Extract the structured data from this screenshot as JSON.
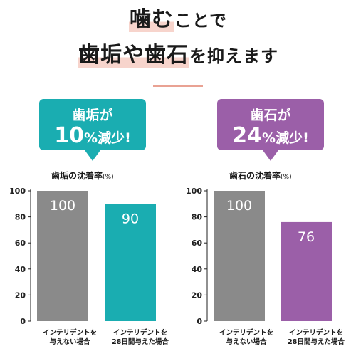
{
  "headline": {
    "line1_highlight": "噛む",
    "line1_rest": "ことで",
    "line2_highlight": "歯垢や歯石",
    "line2_rest": "を抑えます"
  },
  "colors": {
    "teal": "#1aadb1",
    "purple": "#9b5fa8",
    "gray": "#8a8a8a",
    "highlight": "#f7d4cc",
    "rule": "#e9a293"
  },
  "left": {
    "bubble_line1": "歯垢が",
    "bubble_num": "10",
    "bubble_pct": "%",
    "bubble_rest": "減少!",
    "bubble_color": "#1aadb1"
  },
  "right": {
    "bubble_line1": "歯石が",
    "bubble_num": "24",
    "bubble_pct": "%",
    "bubble_rest": "減少!",
    "bubble_color": "#9b5fa8"
  },
  "chart_data": [
    {
      "type": "bar",
      "title": "歯垢の沈着率",
      "unit": "(%)",
      "categories": [
        "インテリデントを\n与えない場合",
        "インテリデントを\n28日間与えた場合"
      ],
      "values": [
        100,
        90
      ],
      "colors": [
        "#8a8a8a",
        "#1aadb1"
      ],
      "ylim": [
        0,
        100
      ],
      "yticks": [
        0,
        20,
        40,
        60,
        80,
        100
      ],
      "data_labels": [
        "100",
        "90"
      ],
      "grid": false
    },
    {
      "type": "bar",
      "title": "歯石の沈着率",
      "unit": "(%)",
      "categories": [
        "インテリデントを\n与えない場合",
        "インテリデントを\n28日間与えた場合"
      ],
      "values": [
        100,
        76
      ],
      "colors": [
        "#8a8a8a",
        "#9b5fa8"
      ],
      "ylim": [
        0,
        100
      ],
      "yticks": [
        0,
        20,
        40,
        60,
        80,
        100
      ],
      "data_labels": [
        "100",
        "76"
      ],
      "grid": false
    }
  ]
}
